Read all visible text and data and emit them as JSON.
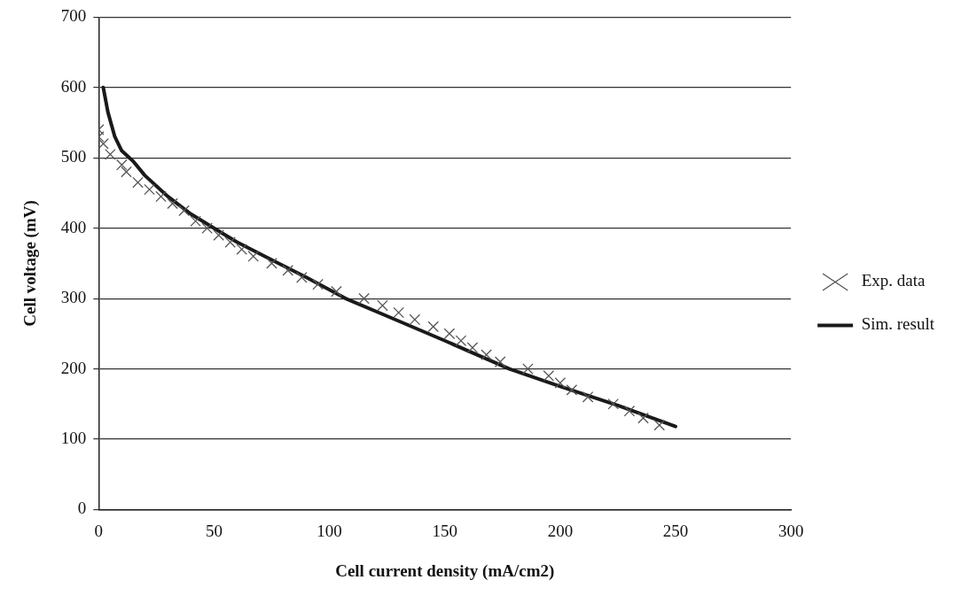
{
  "chart_data": {
    "type": "line",
    "xlabel": "Cell current density (mA/cm2)",
    "ylabel": "Cell voltage (mV)",
    "xlim": [
      0,
      300
    ],
    "xticks": [
      0,
      50,
      100,
      150,
      200,
      250,
      300
    ],
    "ylim": [
      0,
      700
    ],
    "yticks": [
      0,
      100,
      200,
      300,
      400,
      500,
      600,
      700
    ],
    "grid": "y",
    "legend": "right",
    "series": [
      {
        "name": "Sim. result",
        "marker": "none",
        "color": "#1a1a1a",
        "x": [
          2,
          4,
          7,
          10,
          15,
          20,
          30,
          40,
          50,
          60,
          75,
          90,
          107,
          125,
          150,
          178,
          200,
          225,
          250
        ],
        "values": [
          600,
          565,
          530,
          510,
          495,
          475,
          445,
          420,
          400,
          380,
          355,
          330,
          300,
          275,
          240,
          200,
          175,
          148,
          118
        ]
      },
      {
        "name": "Exp. data",
        "type": "scatter",
        "marker": "cross",
        "color": "#555555",
        "x": [
          0,
          0,
          2,
          5,
          10,
          12,
          17,
          22,
          27,
          32,
          37,
          42,
          47,
          52,
          57,
          62,
          67,
          75,
          82,
          88,
          95,
          103,
          115,
          123,
          130,
          137,
          145,
          152,
          157,
          162,
          168,
          174,
          186,
          195,
          200,
          205,
          212,
          223,
          230,
          236,
          243
        ],
        "values": [
          540,
          530,
          520,
          505,
          490,
          480,
          465,
          455,
          445,
          435,
          425,
          410,
          400,
          390,
          380,
          370,
          360,
          350,
          340,
          330,
          320,
          310,
          300,
          290,
          280,
          270,
          260,
          250,
          240,
          230,
          220,
          210,
          200,
          190,
          180,
          170,
          160,
          150,
          140,
          130,
          120
        ]
      }
    ]
  }
}
